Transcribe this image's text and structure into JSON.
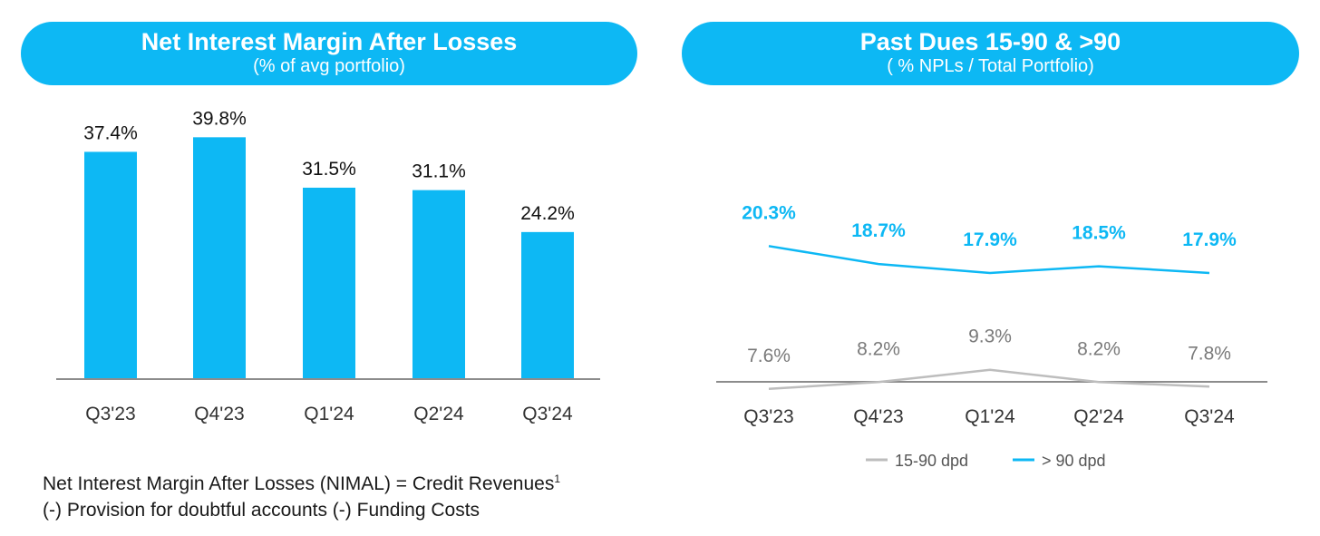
{
  "left_panel": {
    "title": "Net Interest Margin After Losses",
    "subtitle": "(% of avg portfolio)"
  },
  "right_panel": {
    "title": "Past Dues 15-90 & >90",
    "subtitle": "( % NPLs / Total Portfolio)"
  },
  "footnote": {
    "line1": "Net Interest Margin After Losses (NIMAL) =  Credit Revenues",
    "superscript": "1",
    "line2": "(-) Provision for doubtful accounts (-) Funding Costs"
  },
  "colors": {
    "accent": "#0db8f4",
    "gray_series": "#bdbdbd",
    "axis": "#8c8c8c"
  },
  "chart_data": [
    {
      "type": "bar",
      "categories": [
        "Q3'23",
        "Q4'23",
        "Q1'24",
        "Q2'24",
        "Q3'24"
      ],
      "values": [
        37.4,
        39.8,
        31.5,
        31.1,
        24.2
      ],
      "labels": [
        "37.4%",
        "39.8%",
        "31.5%",
        "31.1%",
        "24.2%"
      ],
      "title": "Net Interest Margin After Losses",
      "subtitle": "(% of avg portfolio)",
      "ylim": [
        0,
        40
      ],
      "grid": false
    },
    {
      "type": "line",
      "categories": [
        "Q3'23",
        "Q4'23",
        "Q1'24",
        "Q2'24",
        "Q3'24"
      ],
      "series": [
        {
          "name": "15-90 dpd",
          "values": [
            7.6,
            8.2,
            9.3,
            8.2,
            7.8
          ],
          "labels": [
            "7.6%",
            "8.2%",
            "9.3%",
            "8.2%",
            "7.8%"
          ],
          "color": "#bdbdbd"
        },
        {
          "name": "> 90 dpd",
          "values": [
            20.3,
            18.7,
            17.9,
            18.5,
            17.9
          ],
          "labels": [
            "20.3%",
            "18.7%",
            "17.9%",
            "18.5%",
            "17.9%"
          ],
          "color": "#0db8f4"
        }
      ],
      "title": "Past Dues 15-90 & >90",
      "subtitle": "( % NPLs / Total Portfolio)",
      "legend": "bottom",
      "grid": false
    }
  ]
}
